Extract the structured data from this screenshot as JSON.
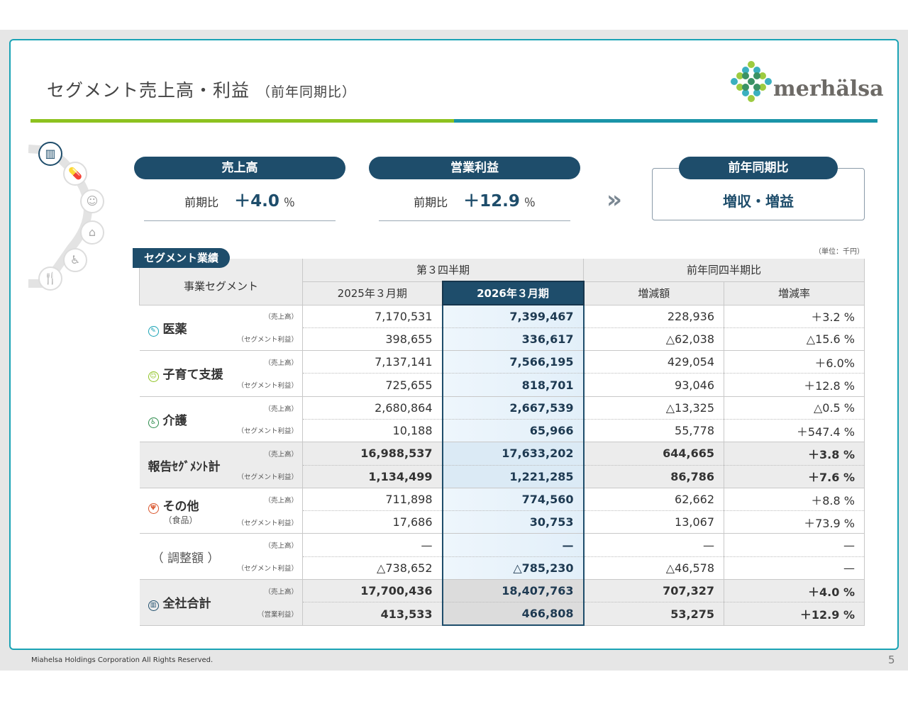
{
  "title": "セグメント売上高・利益",
  "title_sub": "（前年同期比）",
  "logo": "merhälsa",
  "kpis": [
    {
      "label": "売上高",
      "prefix": "前期比",
      "value": "＋4.0",
      "unit": "％"
    },
    {
      "label": "営業利益",
      "prefix": "前期比",
      "value": "＋12.9",
      "unit": "％"
    }
  ],
  "summary": {
    "label": "前年同期比",
    "value": "増収・増益"
  },
  "unit_note": "（単位：千円）",
  "section_tab": "セグメント業績",
  "table": {
    "h_segment": "事業セグメント",
    "h_q3": "第３四半期",
    "h_yoy": "前年同四半期比",
    "h_cols": [
      "2025年３月期",
      "2026年３月期",
      "増減額",
      "増減率"
    ],
    "groups": [
      {
        "name": "医薬",
        "sub": "",
        "icon": "pill-icon",
        "tags": [
          "（売上高）",
          "（セグメント利益）"
        ],
        "rows": [
          [
            "7,170,531",
            "7,399,467",
            "228,936",
            "＋3.2 %"
          ],
          [
            "398,655",
            "336,617",
            "△62,038",
            "△15.6 %"
          ]
        ]
      },
      {
        "name": "子育て支援",
        "sub": "",
        "icon": "child-icon",
        "tags": [
          "（売上高）",
          "（セグメント利益）"
        ],
        "rows": [
          [
            "7,137,141",
            "7,566,195",
            "429,054",
            "＋6.0%"
          ],
          [
            "725,655",
            "818,701",
            "93,046",
            "＋12.8 %"
          ]
        ]
      },
      {
        "name": "介護",
        "sub": "",
        "icon": "wheelchair-icon",
        "tags": [
          "（売上高）",
          "（セグメント利益）"
        ],
        "rows": [
          [
            "2,680,864",
            "2,667,539",
            "△13,325",
            "△0.5 %"
          ],
          [
            "10,188",
            "65,966",
            "55,778",
            "＋547.4 %"
          ]
        ]
      },
      {
        "name": "報告ｾｸﾞﾒﾝﾄ計",
        "sub": "",
        "icon": "",
        "tags": [
          "（売上高）",
          "（セグメント利益）"
        ],
        "rows": [
          [
            "16,988,537",
            "17,633,202",
            "644,665",
            "＋3.8 %"
          ],
          [
            "1,134,499",
            "1,221,285",
            "86,786",
            "＋7.6 %"
          ]
        ]
      },
      {
        "name": "その他",
        "sub": "（食品）",
        "icon": "fork-knife-icon",
        "tags": [
          "（売上高）",
          "（セグメント利益）"
        ],
        "rows": [
          [
            "711,898",
            "774,560",
            "62,662",
            "＋8.8 %"
          ],
          [
            "17,686",
            "30,753",
            "13,067",
            "＋73.9 %"
          ]
        ]
      },
      {
        "name": "（ 調整額 ）",
        "sub": "",
        "icon": "",
        "tags": [
          "（売上高）",
          "（セグメント利益）"
        ],
        "rows": [
          [
            "—",
            "—",
            "—",
            "—"
          ],
          [
            "△738,652",
            "△785,230",
            "△46,578",
            "—"
          ]
        ]
      },
      {
        "name": "全社合計",
        "sub": "",
        "icon": "building-icon",
        "tags": [
          "（売上高）",
          "（営業利益）"
        ],
        "rows": [
          [
            "17,700,436",
            "18,407,763",
            "707,327",
            "＋4.0 %"
          ],
          [
            "413,533",
            "466,808",
            "53,275",
            "＋12.9 %"
          ]
        ]
      }
    ]
  },
  "footer": "Miahelsa Holdings Corporation All Rights Reserved.",
  "page_number": "5",
  "colors": {
    "navy": "#1e4d6b",
    "teal": "#1a94a8",
    "green": "#8dc21f"
  }
}
